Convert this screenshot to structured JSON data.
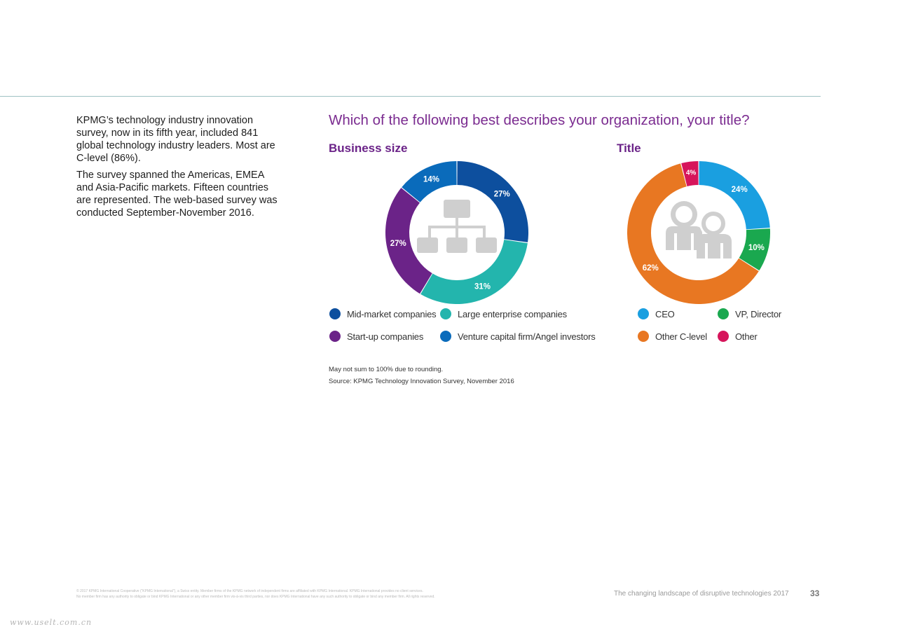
{
  "intro": {
    "p1": "KPMG’s technology industry innovation survey, now in its fifth year, included 841 global technology industry leaders. Most are C-level (86%).",
    "p2": "The survey spanned the Americas, EMEA and Asia-Pacific markets. Fifteen countries are represented. The web-based survey was conducted September-November 2016."
  },
  "question": "Which of the following best describes your organization, your title?",
  "notes": {
    "rounding": "May not sum to 100% due to rounding.",
    "source": "Source: KPMG Technology Innovation Survey, November 2016"
  },
  "footer": {
    "legal_line1": "© 2017 KPMG International Cooperative (“KPMG International”), a Swiss entity. Member firms of the KPMG network of independent firms are affiliated with KPMG International. KPMG International provides no client services.",
    "legal_line2": "No member firm has any authority to obligate or bind KPMG International or any other member firm vis-à-vis third parties, nor does KPMG International have any such authority to obligate or bind any member firm. All rights reserved.",
    "report_title": "The changing landscape of disruptive technologies  2017",
    "page_number": "33"
  },
  "watermark": "www.uselt.com.cn",
  "chart_data": [
    {
      "type": "pie",
      "title": "Business size",
      "categories": [
        "Mid-market companies",
        "Large enterprise companies",
        "Start-up companies",
        "Venture capital firm/Angel investors"
      ],
      "values": [
        27,
        31,
        27,
        14
      ],
      "labels": [
        "27%",
        "31%",
        "27%",
        "14%"
      ],
      "colors": [
        "#0d4f9e",
        "#23b5ad",
        "#6b2388",
        "#0a6bbb"
      ],
      "legend_order": [
        0,
        1,
        2,
        3
      ],
      "center_icon": "org-chart-icon"
    },
    {
      "type": "pie",
      "title": "Title",
      "categories": [
        "CEO",
        "VP, Director",
        "Other C-level",
        "Other"
      ],
      "values": [
        24,
        10,
        62,
        4
      ],
      "labels": [
        "24%",
        "10%",
        "62%",
        "4%"
      ],
      "colors": [
        "#1a9fe0",
        "#1aa84f",
        "#e87722",
        "#d6155b"
      ],
      "legend_order": [
        0,
        1,
        2,
        3
      ],
      "center_icon": "people-icon"
    }
  ]
}
